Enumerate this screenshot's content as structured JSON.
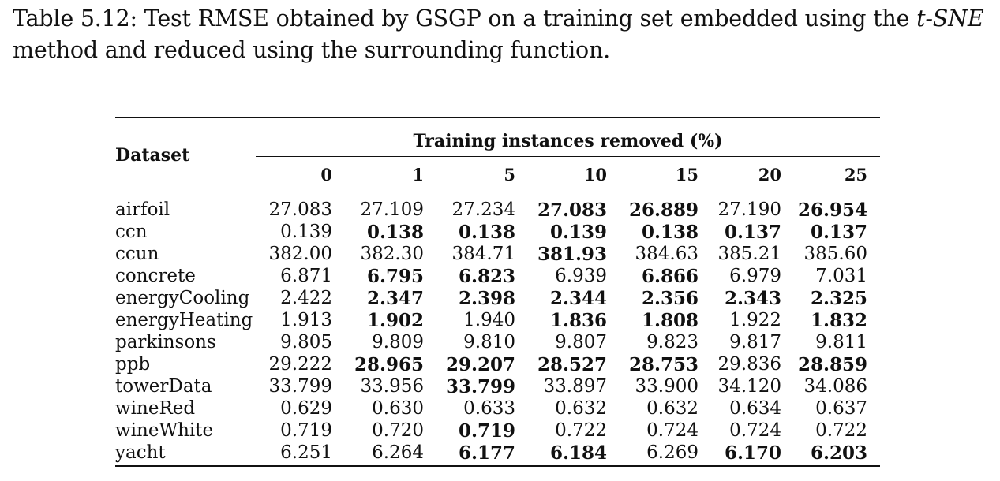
{
  "caption": {
    "label": "Table 5.12:",
    "text_before": "Test RMSE obtained by GSGP on a training set embedded using the",
    "method": "t-SNE",
    "text_after": "method and reduced using the surrounding function."
  },
  "table": {
    "dataset_header": "Dataset",
    "group_header": "Training instances removed (%)",
    "columns": [
      "0",
      "1",
      "5",
      "10",
      "15",
      "20",
      "25"
    ],
    "rows": [
      {
        "name": "airfoil",
        "values": [
          "27.083",
          "27.109",
          "27.234",
          "27.083",
          "26.889",
          "27.190",
          "26.954"
        ],
        "bold": [
          false,
          false,
          false,
          true,
          true,
          false,
          true
        ]
      },
      {
        "name": "ccn",
        "values": [
          "0.139",
          "0.138",
          "0.138",
          "0.139",
          "0.138",
          "0.137",
          "0.137"
        ],
        "bold": [
          false,
          true,
          true,
          true,
          true,
          true,
          true
        ]
      },
      {
        "name": "ccun",
        "values": [
          "382.00",
          "382.30",
          "384.71",
          "381.93",
          "384.63",
          "385.21",
          "385.60"
        ],
        "bold": [
          false,
          false,
          false,
          true,
          false,
          false,
          false
        ]
      },
      {
        "name": "concrete",
        "values": [
          "6.871",
          "6.795",
          "6.823",
          "6.939",
          "6.866",
          "6.979",
          "7.031"
        ],
        "bold": [
          false,
          true,
          true,
          false,
          true,
          false,
          false
        ]
      },
      {
        "name": "energyCooling",
        "values": [
          "2.422",
          "2.347",
          "2.398",
          "2.344",
          "2.356",
          "2.343",
          "2.325"
        ],
        "bold": [
          false,
          true,
          true,
          true,
          true,
          true,
          true
        ]
      },
      {
        "name": "energyHeating",
        "values": [
          "1.913",
          "1.902",
          "1.940",
          "1.836",
          "1.808",
          "1.922",
          "1.832"
        ],
        "bold": [
          false,
          true,
          false,
          true,
          true,
          false,
          true
        ]
      },
      {
        "name": "parkinsons",
        "values": [
          "9.805",
          "9.809",
          "9.810",
          "9.807",
          "9.823",
          "9.817",
          "9.811"
        ],
        "bold": [
          false,
          false,
          false,
          false,
          false,
          false,
          false
        ]
      },
      {
        "name": "ppb",
        "values": [
          "29.222",
          "28.965",
          "29.207",
          "28.527",
          "28.753",
          "29.836",
          "28.859"
        ],
        "bold": [
          false,
          true,
          true,
          true,
          true,
          false,
          true
        ]
      },
      {
        "name": "towerData",
        "values": [
          "33.799",
          "33.956",
          "33.799",
          "33.897",
          "33.900",
          "34.120",
          "34.086"
        ],
        "bold": [
          false,
          false,
          true,
          false,
          false,
          false,
          false
        ]
      },
      {
        "name": "wineRed",
        "values": [
          "0.629",
          "0.630",
          "0.633",
          "0.632",
          "0.632",
          "0.634",
          "0.637"
        ],
        "bold": [
          false,
          false,
          false,
          false,
          false,
          false,
          false
        ]
      },
      {
        "name": "wineWhite",
        "values": [
          "0.719",
          "0.720",
          "0.719",
          "0.722",
          "0.724",
          "0.724",
          "0.722"
        ],
        "bold": [
          false,
          false,
          true,
          false,
          false,
          false,
          false
        ]
      },
      {
        "name": "yacht",
        "values": [
          "6.251",
          "6.264",
          "6.177",
          "6.184",
          "6.269",
          "6.170",
          "6.203"
        ],
        "bold": [
          false,
          false,
          true,
          true,
          false,
          true,
          true
        ]
      }
    ]
  }
}
